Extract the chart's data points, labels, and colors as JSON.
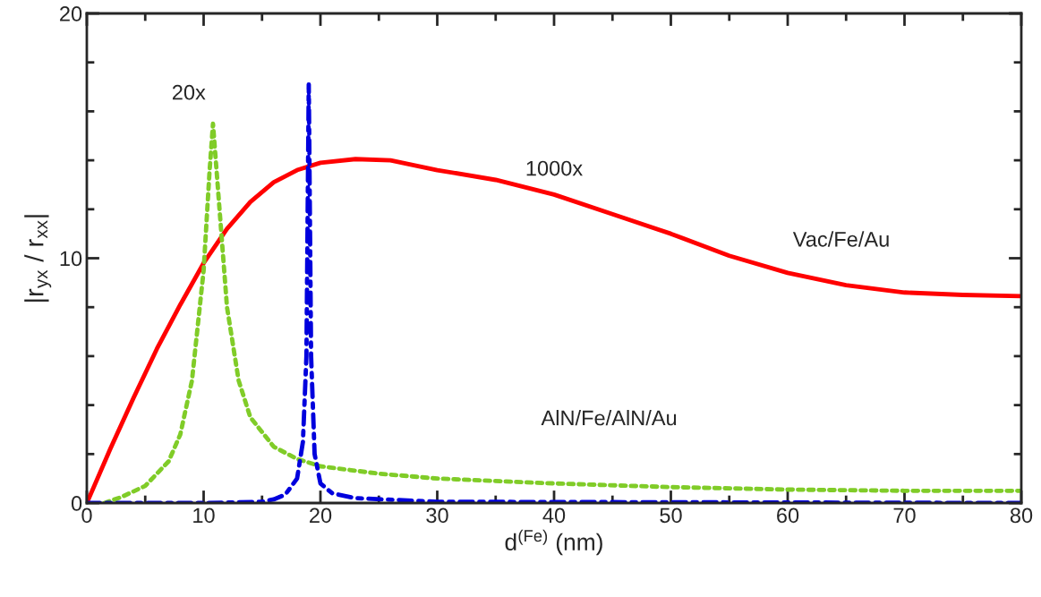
{
  "chart_data": {
    "type": "line",
    "xlabel": "d$^{(Fe)}$ (nm)",
    "ylabel": "|r$_{yx}$ / r$_{xx}$|",
    "xlim": [
      0,
      80
    ],
    "xticks": [
      0,
      10,
      20,
      30,
      40,
      50,
      60,
      70,
      80
    ],
    "ylim": [
      0,
      20
    ],
    "yticks": [
      0,
      10,
      20
    ],
    "grid": false,
    "legend": false,
    "marker": "none",
    "series": [
      {
        "color": "#ff0000",
        "line_style": "solid",
        "x": [
          0,
          2,
          4,
          6,
          8,
          10,
          12,
          14,
          16,
          18,
          20,
          23,
          26,
          30,
          35,
          40,
          45,
          50,
          55,
          60,
          65,
          70,
          75,
          80
        ],
        "values": [
          0,
          2.2,
          4.3,
          6.3,
          8.1,
          9.8,
          11.2,
          12.3,
          13.1,
          13.6,
          13.9,
          14.05,
          14.0,
          13.6,
          13.2,
          12.6,
          11.8,
          11.0,
          10.1,
          9.4,
          8.9,
          8.6,
          8.5,
          8.45
        ]
      },
      {
        "color": "#80cc28",
        "line_style": "dotted",
        "x": [
          1.5,
          3,
          5,
          7,
          8,
          9,
          10,
          10.5,
          10.8,
          11.2,
          12,
          13,
          14,
          16,
          18,
          20,
          25,
          30,
          40,
          50,
          60,
          70,
          80
        ],
        "values": [
          0,
          0.25,
          0.7,
          1.7,
          2.8,
          5,
          9.5,
          13.5,
          15.5,
          13,
          8,
          5,
          3.5,
          2.3,
          1.8,
          1.5,
          1.2,
          1.0,
          0.8,
          0.65,
          0.55,
          0.5,
          0.5
        ]
      },
      {
        "color": "#0000dd",
        "line_style": "dashdot",
        "x": [
          0,
          10,
          15,
          16,
          17,
          18,
          18.5,
          18.8,
          19,
          19.2,
          19.5,
          20,
          21,
          23,
          30,
          80
        ],
        "values": [
          0,
          0,
          0.05,
          0.15,
          0.35,
          1.0,
          2.5,
          6,
          17.1,
          6,
          2,
          0.8,
          0.4,
          0.2,
          0.05,
          0
        ]
      }
    ],
    "annotations": [
      "20x",
      "1000x",
      "Vac/Fe/Au",
      "AlN/Fe/AlN/Au"
    ]
  }
}
